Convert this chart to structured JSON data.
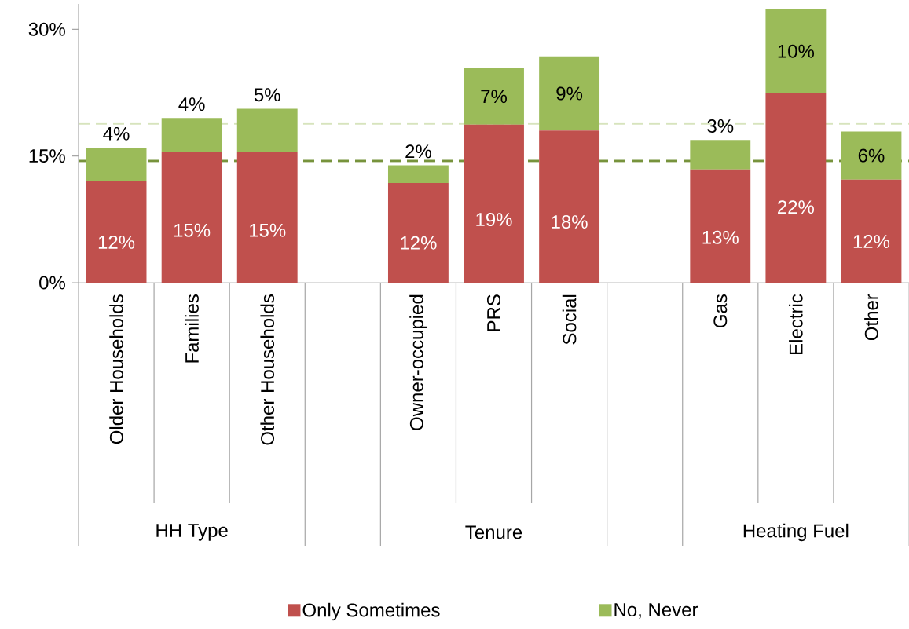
{
  "chart_data": {
    "type": "bar",
    "stacked": true,
    "categories": [
      "Older Households",
      "Families",
      "Other Households",
      null,
      "Owner-occupied",
      "PRS",
      "Social",
      null,
      "Gas",
      "Electric",
      "Other"
    ],
    "series": [
      {
        "name": "Only Sometimes",
        "color": "#c0504d",
        "values": [
          12.0,
          15.5,
          15.5,
          null,
          11.8,
          18.7,
          18.0,
          null,
          13.4,
          22.4,
          12.2
        ],
        "value_labels": [
          "12%",
          "15%",
          "15%",
          null,
          "12%",
          "19%",
          "18%",
          null,
          "13%",
          "22%",
          "12%"
        ]
      },
      {
        "name": "No, Never",
        "color": "#9bbb59",
        "values": [
          4.0,
          4.0,
          5.1,
          null,
          2.1,
          6.7,
          8.8,
          null,
          3.5,
          10.0,
          5.7
        ],
        "value_labels": [
          "4%",
          "4%",
          "5%",
          null,
          "2%",
          "7%",
          "9%",
          null,
          "3%",
          "10%",
          "6%"
        ]
      }
    ],
    "ylim": [
      0,
      33
    ],
    "yticks": [
      {
        "value": 0,
        "label": "0%"
      },
      {
        "value": 15,
        "label": "15%"
      },
      {
        "value": 30,
        "label": "30%"
      }
    ],
    "ref_lines": [
      {
        "axis": "y",
        "value": 18.85,
        "color": "#d7e4bd",
        "line_style": "dashed"
      },
      {
        "axis": "y",
        "value": 14.4,
        "color": "#77933c",
        "line_style": "dashed"
      }
    ],
    "annotations": [
      "HH Type",
      "Tenure",
      "Heating Fuel"
    ],
    "legend": "bottom"
  }
}
